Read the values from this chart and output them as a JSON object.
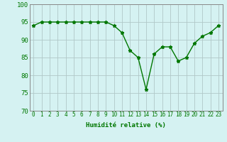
{
  "x": [
    0,
    1,
    2,
    3,
    4,
    5,
    6,
    7,
    8,
    9,
    10,
    11,
    12,
    13,
    14,
    15,
    16,
    17,
    18,
    19,
    20,
    21,
    22,
    23
  ],
  "y": [
    94,
    95,
    95,
    95,
    95,
    95,
    95,
    95,
    95,
    95,
    94,
    92,
    87,
    85,
    76,
    86,
    88,
    88,
    84,
    85,
    89,
    91,
    92,
    94
  ],
  "line_color": "#007700",
  "marker": "*",
  "marker_size": 3.5,
  "bg_color": "#d5f2f2",
  "grid_color": "#b0c8c8",
  "xlabel": "Humidité relative (%)",
  "tick_color": "#007700",
  "ylim": [
    70,
    100
  ],
  "yticks": [
    70,
    75,
    80,
    85,
    90,
    95,
    100
  ],
  "line_width": 1.0,
  "tick_fontsize": 5.5,
  "xlabel_fontsize": 6.5
}
